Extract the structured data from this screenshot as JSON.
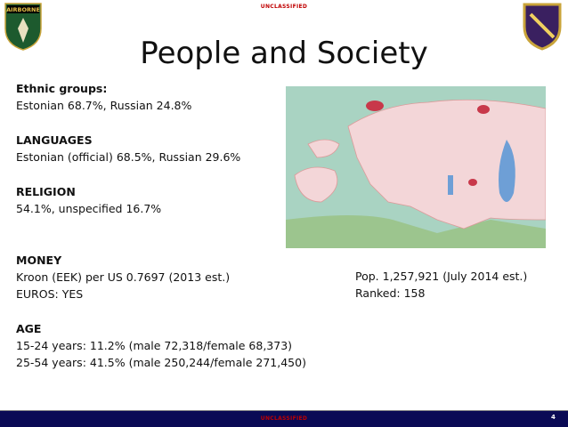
{
  "header": {
    "classification": "UNCLASSIFIED",
    "logo_text": "AIRBORNE",
    "title": "People and Society"
  },
  "sections": [
    {
      "heading": "Ethnic groups:",
      "lines": [
        "Estonian 68.7%, Russian 24.8%"
      ]
    },
    {
      "heading": "LANGUAGES",
      "lines": [
        "Estonian (official) 68.5%, Russian 29.6%"
      ]
    },
    {
      "heading": "RELIGION",
      "lines": [
        "54.1%, unspecified 16.7%"
      ]
    },
    {
      "heading": "MONEY",
      "lines": [
        "Kroon (EEK) per US 0.7697 (2013 est.)",
        "EUROS: YES"
      ]
    },
    {
      "heading": "AGE",
      "lines": [
        "15-24 years: 11.2% (male 72,318/female 68,373)",
        "25-54 years: 41.5% (male 250,244/female 271,450)"
      ]
    }
  ],
  "population": {
    "lines": [
      "Pop. 1,257,921 (July 2014 est.)",
      "Ranked: 158"
    ]
  },
  "footer": {
    "classification": "UNCLASSIFIED",
    "page": "4"
  }
}
